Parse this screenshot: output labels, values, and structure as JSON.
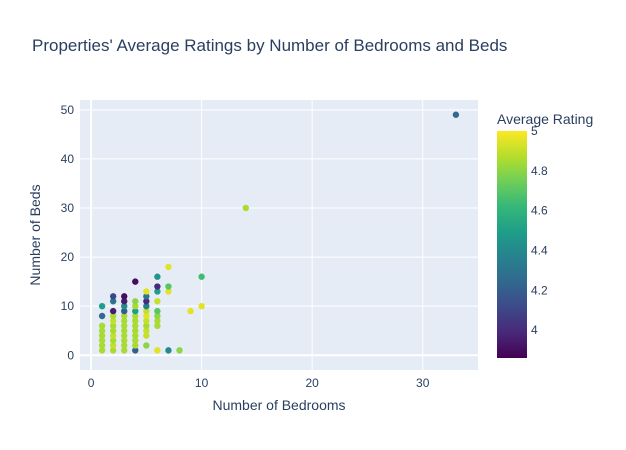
{
  "chart_data": {
    "type": "scatter",
    "title": "Properties' Average Ratings by Number of Bedrooms and Beds",
    "xlabel": "Number of Bedrooms",
    "ylabel": "Number of Beds",
    "xlim": [
      -1,
      35
    ],
    "ylim": [
      -3,
      52
    ],
    "x_ticks": [
      0,
      10,
      20,
      30
    ],
    "y_ticks": [
      0,
      10,
      20,
      30,
      40,
      50
    ],
    "grid": true,
    "colorbar": {
      "title": "Average Rating",
      "range": [
        3.86,
        5.0
      ],
      "ticks": [
        4,
        4.2,
        4.4,
        4.6,
        4.8,
        5
      ],
      "tick_labels": [
        "4",
        "4.2",
        "4.4",
        "4.6",
        "4.8",
        "5"
      ],
      "colorscale": "Viridis"
    },
    "points": [
      {
        "x": 1,
        "y": 1,
        "rating": 4.85
      },
      {
        "x": 1,
        "y": 2,
        "rating": 4.85
      },
      {
        "x": 1,
        "y": 3,
        "rating": 4.85
      },
      {
        "x": 1,
        "y": 4,
        "rating": 4.85
      },
      {
        "x": 1,
        "y": 5,
        "rating": 4.85
      },
      {
        "x": 1,
        "y": 6,
        "rating": 4.85
      },
      {
        "x": 1,
        "y": 8,
        "rating": 4.25
      },
      {
        "x": 1,
        "y": 10,
        "rating": 4.5
      },
      {
        "x": 2,
        "y": 1,
        "rating": 4.85
      },
      {
        "x": 2,
        "y": 2,
        "rating": 4.9
      },
      {
        "x": 2,
        "y": 3,
        "rating": 4.85
      },
      {
        "x": 2,
        "y": 4,
        "rating": 4.9
      },
      {
        "x": 2,
        "y": 5,
        "rating": 4.85
      },
      {
        "x": 2,
        "y": 6,
        "rating": 4.85
      },
      {
        "x": 2,
        "y": 7,
        "rating": 4.9
      },
      {
        "x": 2,
        "y": 8,
        "rating": 4.85
      },
      {
        "x": 2,
        "y": 9,
        "rating": 3.95
      },
      {
        "x": 2,
        "y": 11,
        "rating": 4.3
      },
      {
        "x": 2,
        "y": 12,
        "rating": 4.1
      },
      {
        "x": 3,
        "y": 1,
        "rating": 4.85
      },
      {
        "x": 3,
        "y": 2,
        "rating": 4.85
      },
      {
        "x": 3,
        "y": 3,
        "rating": 4.85
      },
      {
        "x": 3,
        "y": 4,
        "rating": 4.85
      },
      {
        "x": 3,
        "y": 5,
        "rating": 4.85
      },
      {
        "x": 3,
        "y": 6,
        "rating": 4.85
      },
      {
        "x": 3,
        "y": 7,
        "rating": 4.85
      },
      {
        "x": 3,
        "y": 8,
        "rating": 4.85
      },
      {
        "x": 3,
        "y": 9,
        "rating": 4.2
      },
      {
        "x": 3,
        "y": 10,
        "rating": 4.4
      },
      {
        "x": 3,
        "y": 11,
        "rating": 3.95
      },
      {
        "x": 3,
        "y": 12,
        "rating": 3.9
      },
      {
        "x": 4,
        "y": 1,
        "rating": 4.2
      },
      {
        "x": 4,
        "y": 2,
        "rating": 4.85
      },
      {
        "x": 4,
        "y": 3,
        "rating": 4.85
      },
      {
        "x": 4,
        "y": 4,
        "rating": 4.85
      },
      {
        "x": 4,
        "y": 5,
        "rating": 4.85
      },
      {
        "x": 4,
        "y": 6,
        "rating": 4.85
      },
      {
        "x": 4,
        "y": 7,
        "rating": 4.85
      },
      {
        "x": 4,
        "y": 8,
        "rating": 4.85
      },
      {
        "x": 4,
        "y": 9,
        "rating": 4.5
      },
      {
        "x": 4,
        "y": 10,
        "rating": 4.85
      },
      {
        "x": 4,
        "y": 11,
        "rating": 4.8
      },
      {
        "x": 4,
        "y": 15,
        "rating": 3.9
      },
      {
        "x": 5,
        "y": 2,
        "rating": 4.8
      },
      {
        "x": 5,
        "y": 4,
        "rating": 4.9
      },
      {
        "x": 5,
        "y": 5,
        "rating": 4.9
      },
      {
        "x": 5,
        "y": 6,
        "rating": 4.85
      },
      {
        "x": 5,
        "y": 7,
        "rating": 4.9
      },
      {
        "x": 5,
        "y": 8,
        "rating": 4.95
      },
      {
        "x": 5,
        "y": 9,
        "rating": 4.9
      },
      {
        "x": 5,
        "y": 10,
        "rating": 4.35
      },
      {
        "x": 5,
        "y": 11,
        "rating": 4.0
      },
      {
        "x": 5,
        "y": 12,
        "rating": 4.3
      },
      {
        "x": 5,
        "y": 13,
        "rating": 4.95
      },
      {
        "x": 6,
        "y": 1,
        "rating": 4.95
      },
      {
        "x": 6,
        "y": 6,
        "rating": 4.85
      },
      {
        "x": 6,
        "y": 7,
        "rating": 4.85
      },
      {
        "x": 6,
        "y": 8,
        "rating": 4.8
      },
      {
        "x": 6,
        "y": 9,
        "rating": 4.7
      },
      {
        "x": 6,
        "y": 11,
        "rating": 4.9
      },
      {
        "x": 6,
        "y": 13,
        "rating": 4.5
      },
      {
        "x": 6,
        "y": 14,
        "rating": 4.0
      },
      {
        "x": 6,
        "y": 16,
        "rating": 4.45
      },
      {
        "x": 7,
        "y": 1,
        "rating": 4.4
      },
      {
        "x": 7,
        "y": 13,
        "rating": 4.95
      },
      {
        "x": 7,
        "y": 14,
        "rating": 4.7
      },
      {
        "x": 7,
        "y": 18,
        "rating": 4.95
      },
      {
        "x": 8,
        "y": 1,
        "rating": 4.8
      },
      {
        "x": 9,
        "y": 9,
        "rating": 4.95
      },
      {
        "x": 10,
        "y": 10,
        "rating": 4.95
      },
      {
        "x": 10,
        "y": 16,
        "rating": 4.65
      },
      {
        "x": 14,
        "y": 30,
        "rating": 4.85
      },
      {
        "x": 33,
        "y": 49,
        "rating": 4.25
      }
    ]
  }
}
